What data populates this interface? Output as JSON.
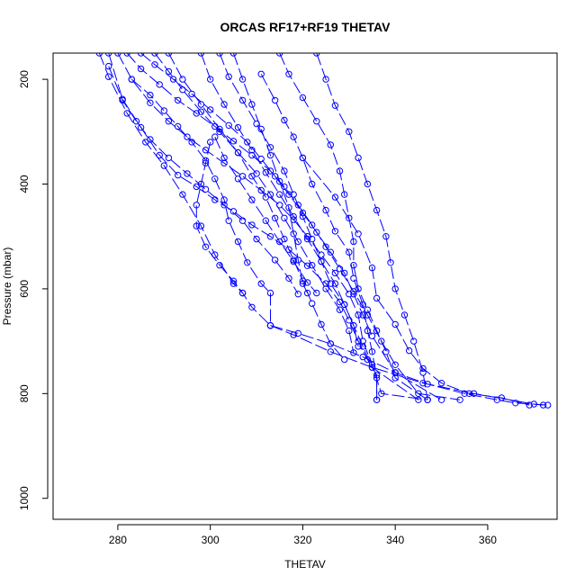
{
  "chart_data": {
    "type": "line",
    "title": "ORCAS RF17+RF19 THETAV",
    "xlabel": "THETAV",
    "ylabel": "Pressure (mbar)",
    "xlim": [
      266,
      375
    ],
    "ylim": [
      1040,
      150
    ],
    "y_reversed": true,
    "x_ticks": [
      280,
      300,
      320,
      340,
      360
    ],
    "y_ticks": [
      200,
      400,
      600,
      800,
      1000
    ],
    "color": "#0000ff",
    "marker": "open-circle",
    "line_style": "long-dash",
    "grid": false,
    "series": [
      {
        "points": [
          [
            278,
            150
          ],
          [
            281,
            238
          ],
          [
            285,
            292
          ],
          [
            289,
            345
          ],
          [
            293,
            383
          ],
          [
            297,
            405
          ],
          [
            301,
            430
          ],
          [
            305,
            452
          ],
          [
            309,
            478
          ],
          [
            313,
            500
          ],
          [
            317,
            525
          ],
          [
            321,
            556
          ],
          [
            325,
            590
          ],
          [
            328,
            625
          ],
          [
            330,
            660
          ],
          [
            332,
            700
          ],
          [
            334,
            735
          ],
          [
            336,
            765
          ],
          [
            336,
            812
          ]
        ]
      },
      {
        "points": [
          [
            280,
            150
          ],
          [
            283,
            200
          ],
          [
            287,
            245
          ],
          [
            291,
            280
          ],
          [
            295,
            310
          ],
          [
            299,
            335
          ],
          [
            303,
            360
          ],
          [
            307,
            385
          ],
          [
            311,
            412
          ],
          [
            315,
            440
          ],
          [
            318,
            468
          ],
          [
            321,
            500
          ],
          [
            324,
            535
          ],
          [
            327,
            570
          ],
          [
            330,
            610
          ],
          [
            332,
            650
          ],
          [
            333,
            700
          ],
          [
            335,
            745
          ],
          [
            337,
            800
          ],
          [
            347,
            812
          ]
        ]
      },
      {
        "points": [
          [
            282,
            150
          ],
          [
            285,
            180
          ],
          [
            289,
            210
          ],
          [
            293,
            240
          ],
          [
            297,
            265
          ],
          [
            301,
            290
          ],
          [
            305,
            318
          ],
          [
            309,
            345
          ],
          [
            313,
            375
          ],
          [
            316,
            405
          ],
          [
            319,
            440
          ],
          [
            322,
            478
          ],
          [
            325,
            520
          ],
          [
            328,
            562
          ],
          [
            331,
            605
          ],
          [
            334,
            650
          ],
          [
            337,
            700
          ],
          [
            340,
            745
          ],
          [
            345,
            800
          ],
          [
            354,
            812
          ]
        ]
      },
      {
        "points": [
          [
            285,
            150
          ],
          [
            288,
            172
          ],
          [
            292,
            200
          ],
          [
            296,
            228
          ],
          [
            300,
            258
          ],
          [
            304,
            288
          ],
          [
            308,
            320
          ],
          [
            311,
            352
          ],
          [
            314,
            385
          ],
          [
            317,
            420
          ],
          [
            320,
            455
          ],
          [
            323,
            492
          ],
          [
            326,
            530
          ],
          [
            329,
            570
          ],
          [
            331,
            610
          ],
          [
            333,
            650
          ],
          [
            335,
            690
          ],
          [
            340,
            760
          ],
          [
            350,
            812
          ]
        ]
      },
      {
        "points": [
          [
            276,
            150
          ],
          [
            278,
            195
          ],
          [
            282,
            265
          ],
          [
            286,
            320
          ],
          [
            290,
            365
          ],
          [
            294,
            420
          ],
          [
            298,
            480
          ],
          [
            301,
            535
          ],
          [
            305,
            590
          ],
          [
            307,
            608
          ]
        ]
      },
      {
        "points": [
          [
            291,
            150
          ],
          [
            294,
            200
          ],
          [
            298,
            248
          ],
          [
            302,
            295
          ],
          [
            306,
            340
          ],
          [
            309,
            385
          ],
          [
            312,
            425
          ],
          [
            314,
            465
          ],
          [
            316,
            505
          ],
          [
            318,
            545
          ],
          [
            320,
            585
          ],
          [
            322,
            628
          ],
          [
            324,
            668
          ],
          [
            326,
            705
          ],
          [
            329,
            735
          ]
        ]
      },
      {
        "points": [
          [
            288,
            150
          ],
          [
            291,
            185
          ],
          [
            294,
            220
          ],
          [
            298,
            262
          ],
          [
            302,
            300
          ],
          [
            306,
            340
          ],
          [
            310,
            380
          ],
          [
            313,
            420
          ],
          [
            316,
            465
          ],
          [
            319,
            510
          ],
          [
            322,
            555
          ],
          [
            325,
            600
          ],
          [
            328,
            640
          ],
          [
            330,
            680
          ],
          [
            331,
            722
          ]
        ]
      },
      {
        "points": [
          [
            298,
            150
          ],
          [
            300,
            200
          ],
          [
            303,
            248
          ],
          [
            306,
            292
          ],
          [
            309,
            335
          ],
          [
            312,
            378
          ],
          [
            315,
            420
          ],
          [
            318,
            462
          ],
          [
            321,
            505
          ],
          [
            324,
            548
          ],
          [
            327,
            590
          ],
          [
            329,
            630
          ],
          [
            331,
            670
          ],
          [
            333,
            710
          ],
          [
            335,
            750
          ],
          [
            345,
            812
          ]
        ]
      },
      {
        "points": [
          [
            302,
            150
          ],
          [
            304,
            195
          ],
          [
            307,
            240
          ],
          [
            310,
            285
          ],
          [
            313,
            330
          ],
          [
            316,
            375
          ],
          [
            318,
            420
          ],
          [
            320,
            462
          ],
          [
            322,
            505
          ],
          [
            324,
            548
          ],
          [
            326,
            590
          ],
          [
            329,
            630
          ],
          [
            331,
            670
          ],
          [
            332,
            710
          ]
        ]
      },
      {
        "points": [
          [
            278,
            175
          ],
          [
            281,
            240
          ],
          [
            284,
            280
          ],
          [
            287,
            315
          ],
          [
            291,
            350
          ],
          [
            295,
            380
          ],
          [
            299,
            410
          ],
          [
            303,
            440
          ],
          [
            307,
            470
          ],
          [
            310,
            505
          ],
          [
            314,
            545
          ],
          [
            317,
            580
          ],
          [
            319,
            610
          ]
        ]
      },
      {
        "points": [
          [
            305,
            150
          ],
          [
            307,
            200
          ],
          [
            309,
            248
          ],
          [
            311,
            295
          ],
          [
            313,
            345
          ],
          [
            315,
            395
          ],
          [
            317,
            445
          ],
          [
            318,
            495
          ],
          [
            319,
            545
          ],
          [
            320,
            590
          ],
          [
            321,
            608
          ]
        ]
      },
      {
        "points": [
          [
            301,
            310
          ],
          [
            303,
            350
          ],
          [
            306,
            390
          ],
          [
            309,
            430
          ],
          [
            312,
            470
          ],
          [
            315,
            510
          ],
          [
            318,
            548
          ],
          [
            321,
            588
          ],
          [
            323,
            608
          ]
        ]
      },
      {
        "points": [
          [
            300,
            320
          ],
          [
            299,
            360
          ],
          [
            298,
            400
          ],
          [
            297,
            440
          ],
          [
            297,
            480
          ],
          [
            299,
            520
          ],
          [
            302,
            555
          ],
          [
            305,
            585
          ],
          [
            307,
            608
          ],
          [
            309,
            635
          ],
          [
            313,
            670
          ],
          [
            318,
            688
          ],
          [
            326,
            720
          ],
          [
            335,
            750
          ],
          [
            346,
            780
          ],
          [
            357,
            800
          ],
          [
            370,
            820
          ],
          [
            372,
            822
          ]
        ]
      },
      {
        "points": [
          [
            283,
            200
          ],
          [
            287,
            230
          ],
          [
            290,
            260
          ],
          [
            293,
            290
          ],
          [
            296,
            320
          ],
          [
            299,
            355
          ],
          [
            301,
            390
          ],
          [
            303,
            430
          ],
          [
            304,
            470
          ],
          [
            306,
            510
          ],
          [
            308,
            550
          ],
          [
            311,
            590
          ],
          [
            313,
            608
          ],
          [
            313,
            670
          ]
        ]
      },
      {
        "points": [
          [
            311,
            190
          ],
          [
            314,
            240
          ],
          [
            316,
            278
          ],
          [
            318,
            310
          ],
          [
            320,
            350
          ],
          [
            322,
            400
          ],
          [
            325,
            450
          ],
          [
            327,
            490
          ],
          [
            330,
            530
          ],
          [
            331,
            580
          ],
          [
            333,
            630
          ],
          [
            334,
            680
          ],
          [
            335,
            720
          ],
          [
            336,
            770
          ],
          [
            336,
            812
          ]
        ]
      },
      {
        "points": [
          [
            315,
            150
          ],
          [
            317,
            190
          ],
          [
            320,
            235
          ],
          [
            323,
            280
          ],
          [
            326,
            325
          ],
          [
            328,
            375
          ],
          [
            329,
            420
          ],
          [
            330,
            465
          ],
          [
            331,
            510
          ],
          [
            331,
            555
          ],
          [
            332,
            600
          ],
          [
            334,
            640
          ],
          [
            336,
            680
          ],
          [
            338,
            720
          ],
          [
            340,
            770
          ],
          [
            347,
            812
          ]
        ]
      },
      {
        "points": [
          [
            323,
            150
          ],
          [
            325,
            200
          ],
          [
            327,
            250
          ],
          [
            330,
            300
          ],
          [
            332,
            350
          ],
          [
            334,
            400
          ],
          [
            336,
            450
          ],
          [
            338,
            500
          ],
          [
            339,
            550
          ],
          [
            340,
            600
          ],
          [
            342,
            650
          ],
          [
            344,
            700
          ],
          [
            346,
            760
          ],
          [
            347,
            812
          ]
        ]
      },
      {
        "points": [
          [
            320,
            350
          ],
          [
            327,
            425
          ],
          [
            332,
            495
          ],
          [
            335,
            560
          ],
          [
            336,
            618
          ],
          [
            340,
            668
          ],
          [
            343,
            718
          ],
          [
            346,
            752
          ],
          [
            350,
            780
          ],
          [
            356,
            800
          ],
          [
            363,
            808
          ],
          [
            369,
            822
          ]
        ]
      },
      {
        "points": [
          [
            313,
            670
          ],
          [
            319,
            685
          ],
          [
            326,
            705
          ],
          [
            333,
            730
          ],
          [
            340,
            760
          ],
          [
            347,
            782
          ],
          [
            355,
            800
          ],
          [
            362,
            812
          ],
          [
            366,
            818
          ],
          [
            373,
            822
          ]
        ]
      }
    ]
  }
}
